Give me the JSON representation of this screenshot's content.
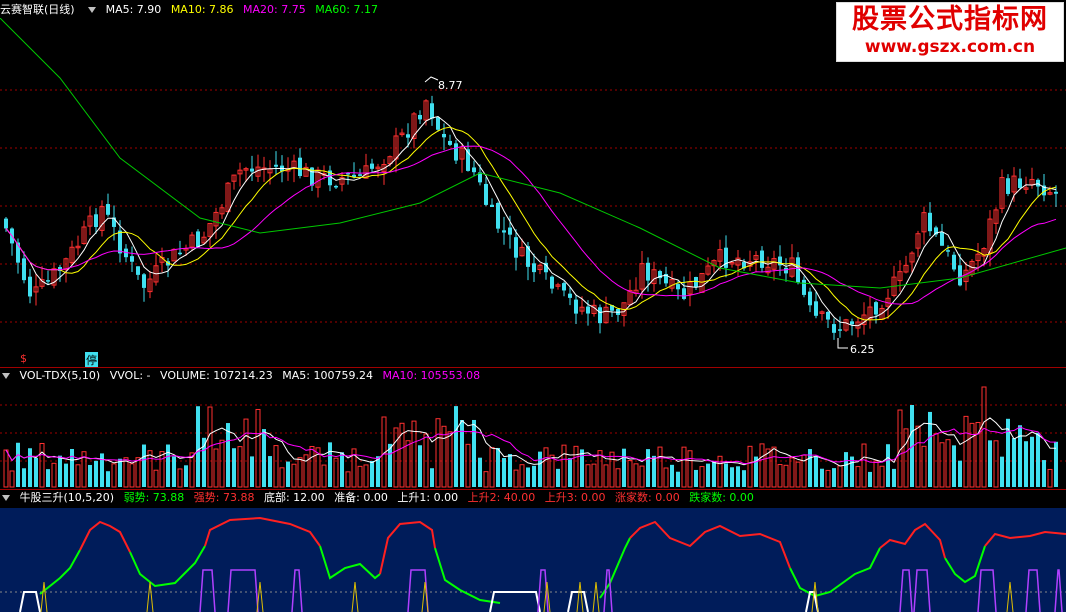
{
  "main_panel": {
    "title": "云赛智联(日线)",
    "ma": [
      {
        "label": "MA5: 7.90",
        "color": "#ffffff"
      },
      {
        "label": "MA10: 7.86",
        "color": "#ffff00"
      },
      {
        "label": "MA20: 7.75",
        "color": "#ff00ff"
      },
      {
        "label": "MA60: 7.17",
        "color": "#00ff00"
      }
    ],
    "high_label": "8.77",
    "low_label": "6.25",
    "marker_s": "$",
    "marker_stop": "停"
  },
  "volume_panel": {
    "title": "VOL-TDX(5,10)",
    "vvol": "VVOL: -",
    "volume": "VOLUME: 107214.23",
    "ma5": "MA5: 100759.24",
    "ma10": "MA10: 105553.08"
  },
  "indicator_panel": {
    "title": "牛股三升(10,5,20)",
    "items": [
      {
        "label": "弱势: 73.88",
        "color": "#00ff00"
      },
      {
        "label": "强势: 73.88",
        "color": "#ff3030"
      },
      {
        "label": "底部: 12.00",
        "color": "#ffffff"
      },
      {
        "label": "准备: 0.00",
        "color": "#ffffff"
      },
      {
        "label": "上升1: 0.00",
        "color": "#ffffff"
      },
      {
        "label": "上升2: 40.00",
        "color": "#ff3030"
      },
      {
        "label": "上升3: 0.00",
        "color": "#ff3030"
      },
      {
        "label": "涨家数: 0.00",
        "color": "#ff3030"
      },
      {
        "label": "跌家数: 0.00",
        "color": "#00ff00"
      }
    ]
  },
  "watermark": {
    "line1": "股票公式指标网",
    "line2": "www.gszx.com.cn"
  },
  "colors": {
    "up": "#ff3030",
    "down": "#40e0f0",
    "grid": "#a00000",
    "indicator_bg": "#001c5a"
  }
}
